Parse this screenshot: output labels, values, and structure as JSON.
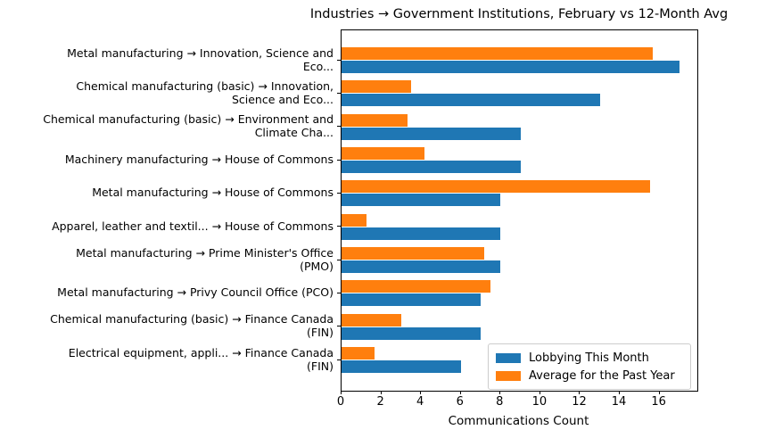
{
  "chart_data": {
    "type": "bar",
    "orientation": "horizontal",
    "title": "Industries → Government Institutions, February vs 12-Month Avg",
    "xlabel": "Communications Count",
    "ylabel": "",
    "categories": [
      "Metal manufacturing → Innovation, Science and\nEco...",
      "Chemical manufacturing (basic) → Innovation,\nScience and Eco...",
      "Chemical manufacturing (basic) → Environment and\nClimate Cha...",
      "Machinery manufacturing → House of Commons",
      "Metal manufacturing → House of Commons",
      "Apparel, leather and textil... → House of Commons",
      "Metal manufacturing → Prime Minister's Office\n(PMO)",
      "Metal manufacturing → Privy Council Office (PCO)",
      "Chemical manufacturing (basic) → Finance Canada\n(FIN)",
      "Electrical equipment, appli... → Finance Canada\n(FIN)"
    ],
    "series": [
      {
        "name": "Lobbying This Month",
        "color": "#1f77b4",
        "values": [
          17,
          13,
          9,
          9,
          8,
          8,
          8,
          7,
          7,
          6
        ]
      },
      {
        "name": "Average for the Past Year",
        "color": "#ff7f0e",
        "values": [
          15.67,
          3.5,
          3.33,
          4.17,
          15.5,
          1.25,
          7.17,
          7.5,
          3.0,
          1.67
        ]
      }
    ],
    "xticks": [
      0,
      2,
      4,
      6,
      8,
      10,
      12,
      14,
      16
    ],
    "xlim": [
      0,
      17.9
    ],
    "grid": false,
    "legend_position": "lower right",
    "bar_group_order": [
      "Average for the Past Year",
      "Lobbying This Month"
    ]
  }
}
